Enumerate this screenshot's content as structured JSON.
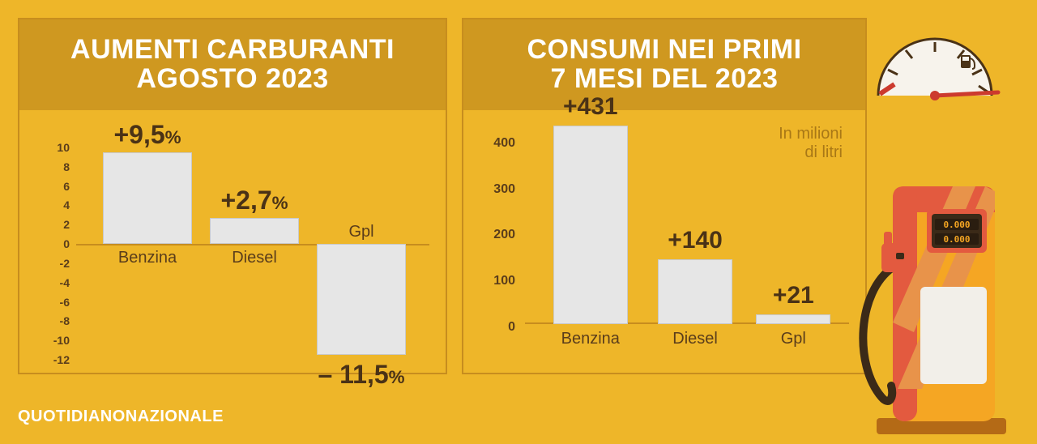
{
  "colors": {
    "page_bg": "#eeb629",
    "panel_border": "#c78d1e",
    "title_band_bg": "#cf9820",
    "title_text": "#ffffff",
    "axis_text": "#5a3d1b",
    "bar_fill": "#e6e6e6",
    "bar_border": "#c9c9c9",
    "value_text": "#4a3216",
    "note_text": "#a97816",
    "source_text": "#ffffff",
    "gauge_stroke": "#4a3216",
    "gauge_needle": "#cc3a2e",
    "pump_red": "#e35a3f",
    "pump_yellow": "#f5a623",
    "pump_dark": "#3b2a18",
    "pump_display_text": "#f5a623"
  },
  "left_chart": {
    "title_line1": "AUMENTI CARBURANTI",
    "title_line2": "AGOSTO 2023",
    "type": "bar-diverging",
    "ylim": [
      -12,
      10
    ],
    "yticks": [
      10,
      8,
      6,
      4,
      2,
      0,
      -2,
      -4,
      -6,
      -8,
      -10,
      -12
    ],
    "suffix": "%",
    "bars": [
      {
        "category": "Benzina",
        "value": 9.5,
        "label": "+9,5"
      },
      {
        "category": "Diesel",
        "value": 2.7,
        "label": "+2,7"
      },
      {
        "category": "Gpl",
        "value": -11.5,
        "label": "– 11,5"
      }
    ],
    "value_fontsize": 32,
    "category_fontsize": 20
  },
  "right_chart": {
    "title_line1": "CONSUMI NEI PRIMI",
    "title_line2": "7 MESI DEL 2023",
    "type": "bar",
    "unit_note_line1": "In milioni",
    "unit_note_line2": "di litri",
    "ylim": [
      0,
      440
    ],
    "yticks": [
      400,
      300,
      200,
      100,
      0
    ],
    "bars": [
      {
        "category": "Benzina",
        "value": 431,
        "label": "+431"
      },
      {
        "category": "Diesel",
        "value": 140,
        "label": "+140"
      },
      {
        "category": "Gpl",
        "value": 21,
        "label": "+21"
      }
    ],
    "value_fontsize": 30,
    "category_fontsize": 20
  },
  "source": "QUOTIDIANONAZIONALE",
  "gauge_icon": "fuel-gauge-icon",
  "pump_icon": "fuel-pump-icon"
}
